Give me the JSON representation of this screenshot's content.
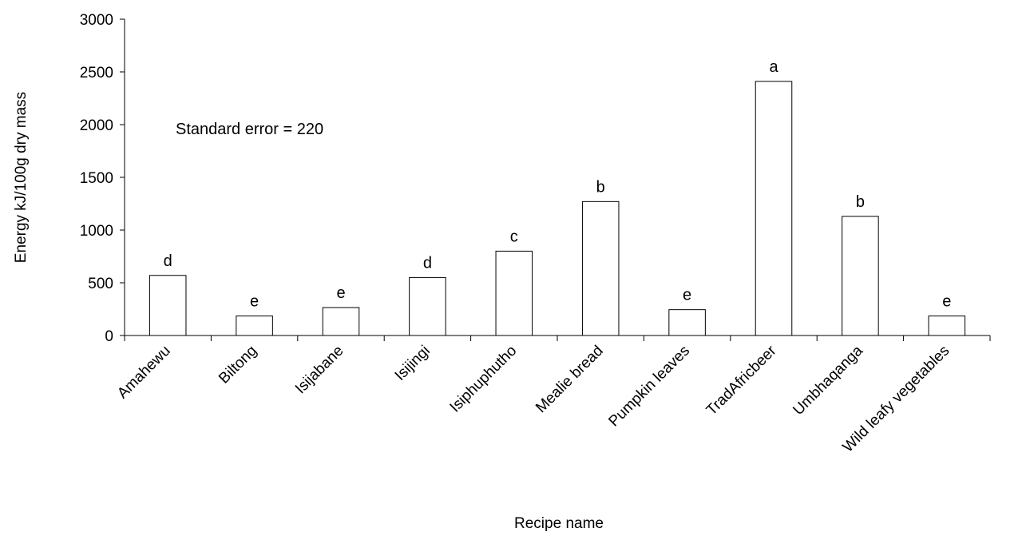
{
  "chart_data": {
    "type": "bar",
    "title": "",
    "xlabel": "Recipe name",
    "ylabel": "Energy kJ/100g dry mass",
    "ylim": [
      0,
      3000
    ],
    "yticks": [
      0,
      500,
      1000,
      1500,
      2000,
      2500,
      3000
    ],
    "categories": [
      "Amahewu",
      "Biltong",
      "Isijabane",
      "Isijingi",
      "Isiphuphutho",
      "Mealie bread",
      "Pumpkin leaves",
      "TradAfricbeer",
      "Umbhaqanga",
      "Wild leafy vegetables"
    ],
    "values": [
      570,
      185,
      265,
      550,
      800,
      1270,
      245,
      2410,
      1130,
      185
    ],
    "significance_letters": [
      "d",
      "e",
      "e",
      "d",
      "c",
      "b",
      "e",
      "a",
      "b",
      "e"
    ],
    "annotation": "Standard error = 220",
    "grid": false,
    "legend": "none",
    "bar_fill": "#ffffff",
    "bar_stroke": "#000000"
  }
}
